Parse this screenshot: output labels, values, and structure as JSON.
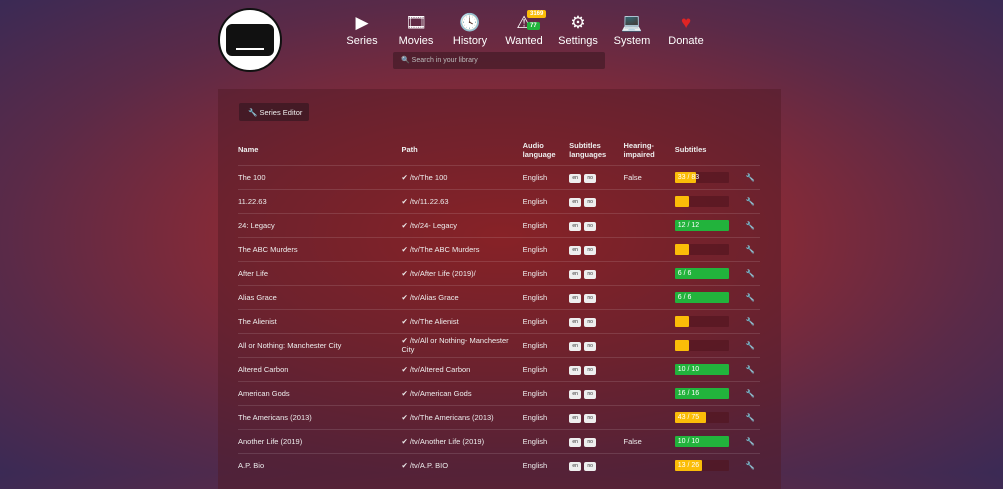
{
  "nav": [
    {
      "label": "Series",
      "icon": "play-icon",
      "glyph": "▶"
    },
    {
      "label": "Movies",
      "icon": "film-icon",
      "glyph": "🎞"
    },
    {
      "label": "History",
      "icon": "clock-icon",
      "glyph": "🕓"
    },
    {
      "label": "Wanted",
      "icon": "warning-icon",
      "glyph": "⚠"
    },
    {
      "label": "Settings",
      "icon": "gears-icon",
      "glyph": "⚙"
    },
    {
      "label": "System",
      "icon": "laptop-icon",
      "glyph": "💻"
    },
    {
      "label": "Donate",
      "icon": "heart-icon",
      "glyph": "♥"
    }
  ],
  "wanted_badges": {
    "series": "3169",
    "movies": "77"
  },
  "search": {
    "placeholder": "Search in your library"
  },
  "series_editor": "Series Editor",
  "headers": {
    "name": "Name",
    "path": "Path",
    "audio": "Audio language",
    "sublangs": "Subtitles languages",
    "hi": "Hearing-impaired",
    "subs": "Subtitles"
  },
  "colors": {
    "complete": "#22b33c",
    "partial": "#fbbd08"
  },
  "rows": [
    {
      "name": "The 100",
      "path": "/tv/The 100",
      "audio": "English",
      "langs": [
        "en",
        "no"
      ],
      "hi": "False",
      "progress": "33 / 83",
      "fraction": 0.4
    },
    {
      "name": "11.22.63",
      "path": "/tv/11.22.63",
      "audio": "English",
      "langs": [
        "en",
        "no"
      ],
      "hi": "",
      "progress": "",
      "fraction": 0
    },
    {
      "name": "24: Legacy",
      "path": "/tv/24- Legacy",
      "audio": "English",
      "langs": [
        "en",
        "no"
      ],
      "hi": "",
      "progress": "12 / 12",
      "fraction": 1
    },
    {
      "name": "The ABC Murders",
      "path": "/tv/The ABC Murders",
      "audio": "English",
      "langs": [
        "en",
        "no"
      ],
      "hi": "",
      "progress": "",
      "fraction": 0
    },
    {
      "name": "After Life",
      "path": "/tv/After Life (2019)/",
      "audio": "English",
      "langs": [
        "en",
        "no"
      ],
      "hi": "",
      "progress": "6 / 6",
      "fraction": 1
    },
    {
      "name": "Alias Grace",
      "path": "/tv/Alias Grace",
      "audio": "English",
      "langs": [
        "en",
        "no"
      ],
      "hi": "",
      "progress": "6 / 6",
      "fraction": 1
    },
    {
      "name": "The Alienist",
      "path": "/tv/The Alienist",
      "audio": "English",
      "langs": [
        "en",
        "no"
      ],
      "hi": "",
      "progress": "",
      "fraction": 0
    },
    {
      "name": "All or Nothing: Manchester City",
      "path": "/tv/All or Nothing- Manchester City",
      "audio": "English",
      "langs": [
        "en",
        "no"
      ],
      "hi": "",
      "progress": "",
      "fraction": 0
    },
    {
      "name": "Altered Carbon",
      "path": "/tv/Altered Carbon",
      "audio": "English",
      "langs": [
        "en",
        "no"
      ],
      "hi": "",
      "progress": "10 / 10",
      "fraction": 1
    },
    {
      "name": "American Gods",
      "path": "/tv/American Gods",
      "audio": "English",
      "langs": [
        "en",
        "no"
      ],
      "hi": "",
      "progress": "16 / 16",
      "fraction": 1
    },
    {
      "name": "The Americans (2013)",
      "path": "/tv/The Americans (2013)",
      "audio": "English",
      "langs": [
        "en",
        "no"
      ],
      "hi": "",
      "progress": "43 / 75",
      "fraction": 0.57
    },
    {
      "name": "Another Life (2019)",
      "path": "/tv/Another Life (2019)",
      "audio": "English",
      "langs": [
        "en",
        "no"
      ],
      "hi": "False",
      "progress": "10 / 10",
      "fraction": 1
    },
    {
      "name": "A.P. Bio",
      "path": "/tv/A.P. BIO",
      "audio": "English",
      "langs": [
        "en",
        "no"
      ],
      "hi": "",
      "progress": "13 / 26",
      "fraction": 0.5
    }
  ]
}
